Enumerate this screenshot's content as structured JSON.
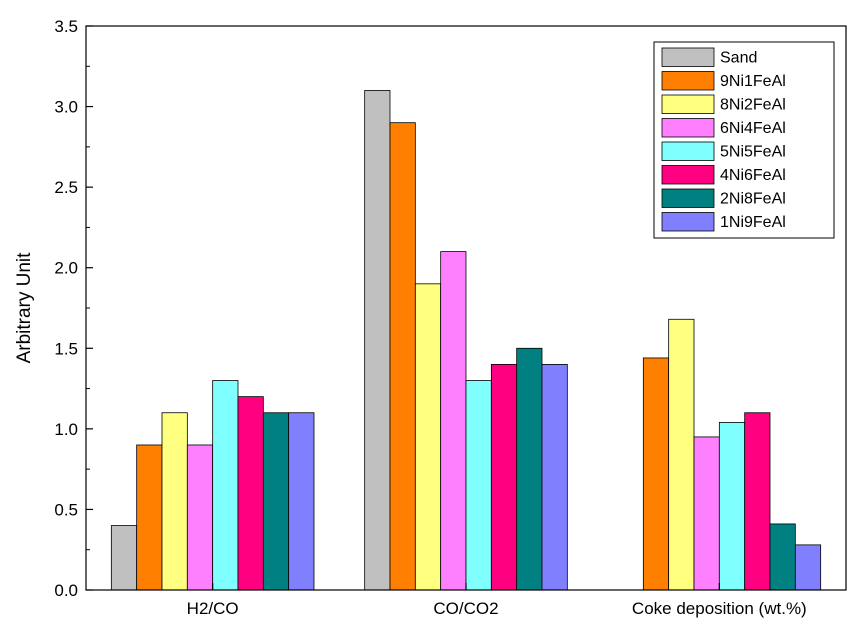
{
  "chart_data": {
    "type": "bar",
    "title": "",
    "xlabel": "",
    "ylabel": "Arbitrary Unit",
    "ylim": [
      0,
      3.5
    ],
    "yticks": [
      "0.0",
      "0.5",
      "1.0",
      "1.5",
      "2.0",
      "2.5",
      "3.0",
      "3.5"
    ],
    "grid": false,
    "legend_position": "top-right",
    "categories": [
      "H2/CO",
      "CO/CO2",
      "Coke deposition (wt.%)"
    ],
    "series": [
      {
        "name": "Sand",
        "color": "#c0c0c0",
        "values": [
          0.4,
          3.1,
          0
        ]
      },
      {
        "name": "9Ni1FeAl",
        "color": "#ff8000",
        "values": [
          0.9,
          2.9,
          1.44
        ]
      },
      {
        "name": "8Ni2FeAl",
        "color": "#ffff80",
        "values": [
          1.1,
          1.9,
          1.68
        ]
      },
      {
        "name": "6Ni4FeAl",
        "color": "#ff80ff",
        "values": [
          0.9,
          2.1,
          0.95
        ]
      },
      {
        "name": "5Ni5FeAl",
        "color": "#80ffff",
        "values": [
          1.3,
          1.3,
          1.04
        ]
      },
      {
        "name": "4Ni6FeAl",
        "color": "#ff0080",
        "values": [
          1.2,
          1.4,
          1.1
        ]
      },
      {
        "name": "2Ni8FeAl",
        "color": "#008080",
        "values": [
          1.1,
          1.5,
          0.41
        ]
      },
      {
        "name": "1Ni9FeAl",
        "color": "#8080ff",
        "values": [
          1.1,
          1.4,
          0.28
        ]
      }
    ]
  }
}
